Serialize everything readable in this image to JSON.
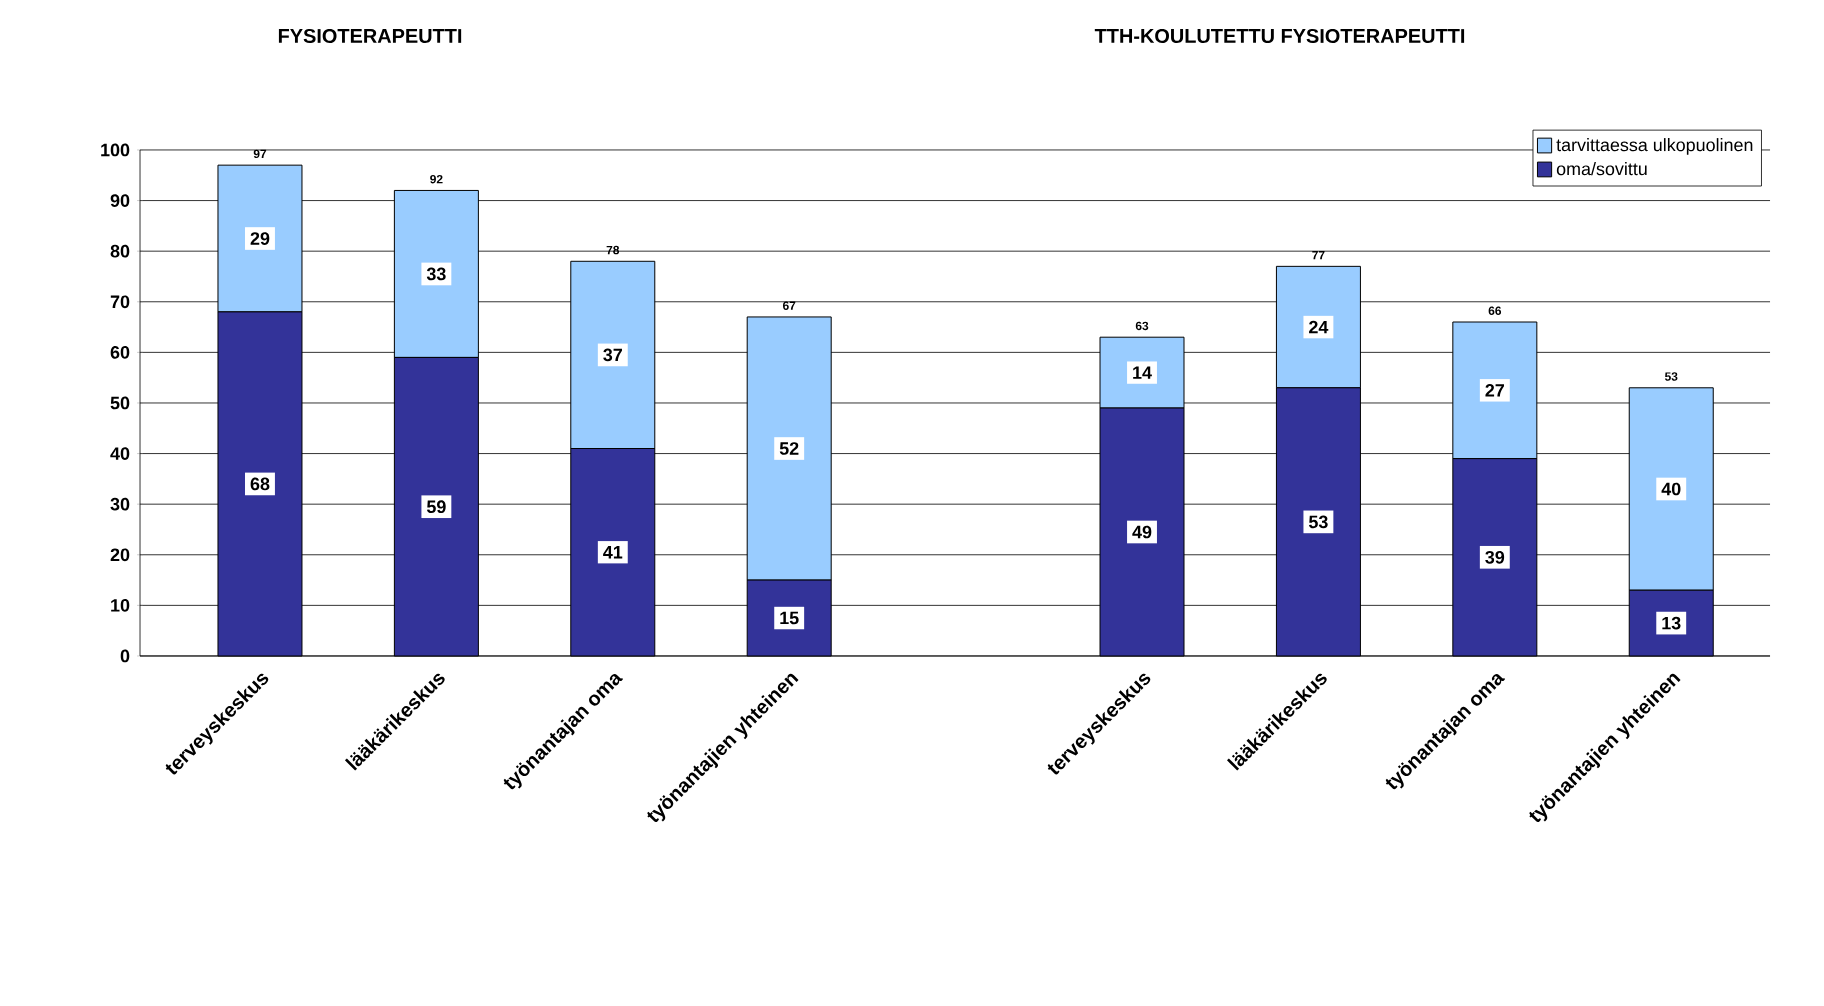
{
  "chart_data": {
    "type": "bar",
    "stacked": true,
    "categories": [
      "terveyskeskus",
      "lääkärikeskus",
      "työnantajan oma",
      "työnantajien yhteinen",
      null,
      "terveyskeskus",
      "lääkärikeskus",
      "työnantajan oma",
      "työnantajien yhteinen"
    ],
    "series": [
      {
        "name": "oma/sovittu",
        "color": "#333399",
        "values": [
          68,
          59,
          41,
          15,
          null,
          49,
          53,
          39,
          13
        ]
      },
      {
        "name": "tarvittaessa ulkopuolinen",
        "color": "#99ccff",
        "values": [
          29,
          33,
          37,
          52,
          null,
          14,
          24,
          27,
          40
        ]
      }
    ],
    "totals": [
      "97",
      "92",
      "78",
      "67",
      null,
      "63",
      "77",
      "66",
      "53"
    ],
    "data_labels": true,
    "ylim": [
      0,
      100
    ],
    "yticks": [
      0,
      10,
      20,
      30,
      40,
      50,
      60,
      70,
      80,
      90,
      100
    ],
    "grid": "y",
    "legend": "top right",
    "annotations": [
      "FYSIOTERAPEUTTI",
      "TTH-KOULUTETTU FYSIOTERAPEUTTI"
    ]
  }
}
